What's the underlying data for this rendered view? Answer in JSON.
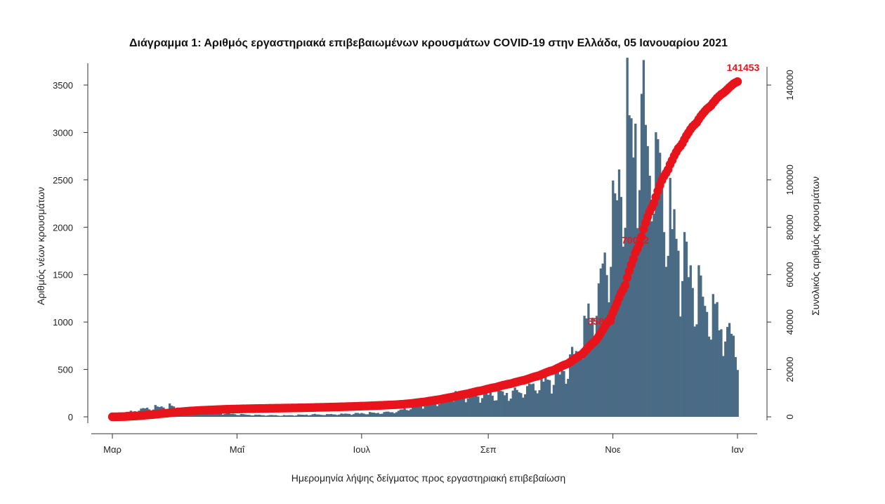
{
  "chart_data": {
    "type": "bar",
    "title": "Διάγραμμα 1: Αριθμός εργαστηριακά επιβεβαιωμένων κρουσμάτων COVID-19 στην Ελλάδα, 05 Ιανουαρίου 2021",
    "xlabel": "Ημερομηνία λήψης δείγματος προς εργαστηριακή επιβεβαίωση",
    "ylabel": "Αριθμός νέων κρουσμάτων",
    "y2label": "Συνολικός αριθμός κρουσμάτων",
    "ylim": [
      0,
      3700
    ],
    "y2lim": [
      0,
      148000
    ],
    "yticks": [
      0,
      500,
      1000,
      1500,
      2000,
      2500,
      3000,
      3500
    ],
    "y2ticks": [
      0,
      20000,
      40000,
      60000,
      80000,
      100000,
      140000
    ],
    "y2tick_labels": [
      "0",
      "20000",
      "40000",
      "60000",
      "80000",
      "100000",
      "140000"
    ],
    "x_months": [
      "Μαρ",
      "Μαΐ",
      "Ιουλ",
      "Σεπ",
      "Νοε",
      "Ιαν"
    ],
    "x_month_day_index": [
      0,
      61,
      122,
      184,
      245,
      306
    ],
    "weekly_new_cases_per_day": [
      5,
      45,
      80,
      100,
      110,
      85,
      60,
      45,
      35,
      25,
      20,
      18,
      15,
      20,
      25,
      25,
      30,
      35,
      40,
      45,
      60,
      110,
      150,
      180,
      230,
      230,
      240,
      250,
      250,
      300,
      370,
      420,
      560,
      900,
      1300,
      2050,
      2900,
      3100,
      2700,
      2050,
      1650,
      1300,
      1100,
      900,
      650,
      600
    ],
    "series": [
      {
        "name": "Αριθμός νέων κρουσμάτων",
        "color": "#4a6b85"
      },
      {
        "name": "Συνολικός αριθμός κρουσμάτων",
        "color": "#e8141c"
      }
    ],
    "annotations": [
      {
        "text": "141453",
        "day": 306,
        "value": 141453
      },
      {
        "text": "70082",
        "day": 256,
        "value": 70082
      },
      {
        "text": "35879",
        "day": 240,
        "value": 35879
      }
    ]
  }
}
